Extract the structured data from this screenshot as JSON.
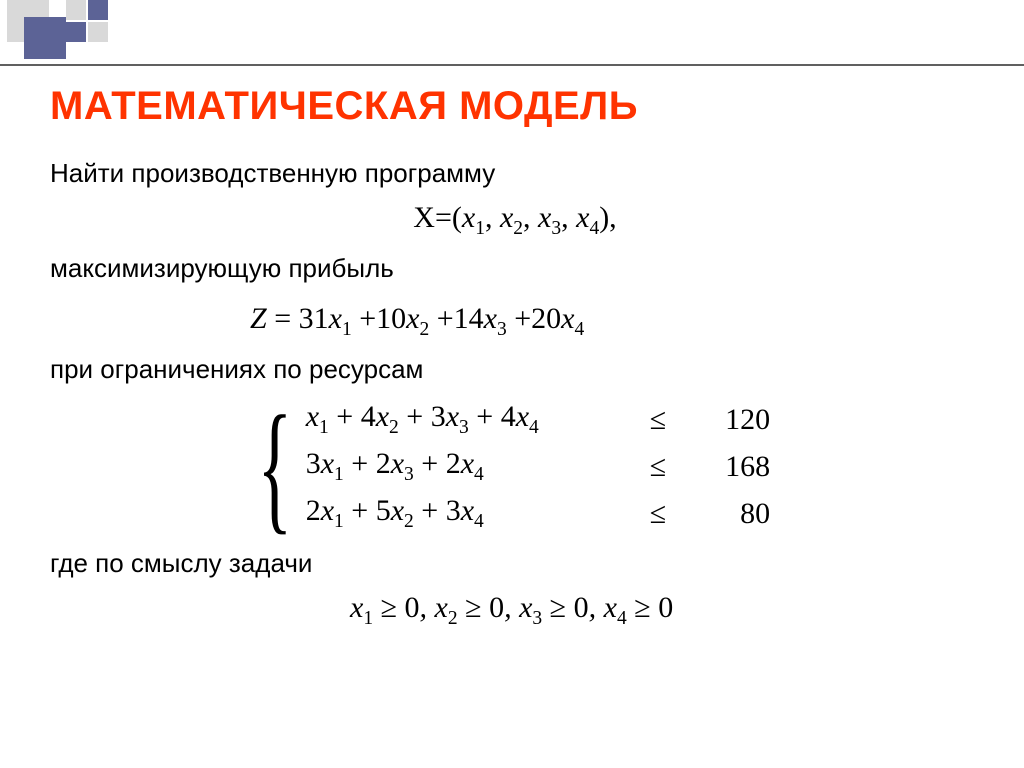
{
  "decoration": {
    "gray": "#d9d9d9",
    "navy": "#5c6396",
    "bar_color": "#606060"
  },
  "title": {
    "text": "МАТЕМАТИЧЕСКАЯ МОДЕЛЬ",
    "color": "#ff3300",
    "fontsize": 40
  },
  "lines": {
    "find_program": "Найти производственную программу",
    "maximizing": "максимизирующую прибыль",
    "subject_to": "при ограничениях по ресурсам",
    "where_sense": "где по смыслу задачи"
  },
  "variables": {
    "vector_symbol": "X",
    "names": [
      "x",
      "x",
      "x",
      "x"
    ],
    "subs": [
      "1",
      "2",
      "3",
      "4"
    ]
  },
  "objective": {
    "symbol": "Z",
    "coeffs": [
      31,
      10,
      14,
      20
    ]
  },
  "constraints": {
    "rows": [
      {
        "coeffs": [
          1,
          4,
          3,
          4
        ],
        "rhs": 120
      },
      {
        "coeffs": [
          3,
          0,
          2,
          2
        ],
        "rhs": 168
      },
      {
        "coeffs": [
          2,
          5,
          0,
          3
        ],
        "rhs": 80
      }
    ],
    "op": "≤"
  },
  "nonneg": {
    "op": "≥",
    "rhs": 0
  },
  "fonts": {
    "body_size": 26,
    "math_size": 30,
    "math_family": "Times New Roman"
  }
}
